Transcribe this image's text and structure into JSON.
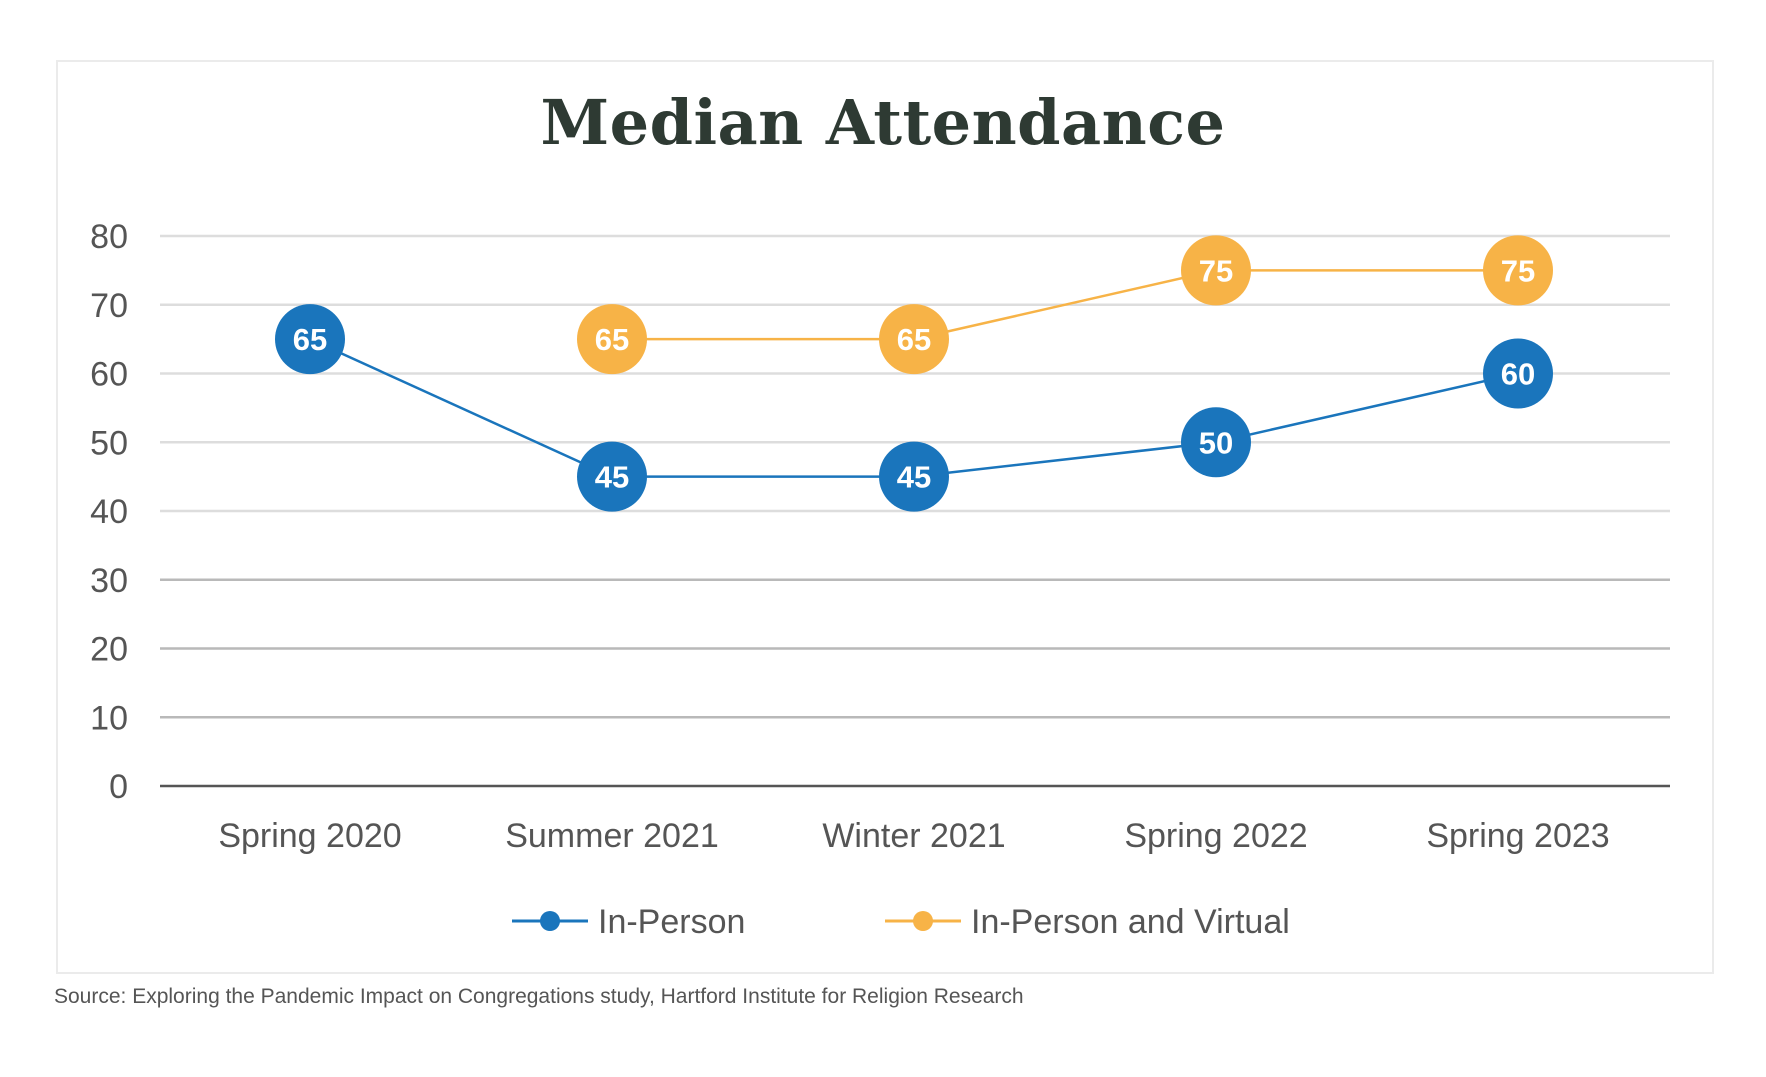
{
  "chart_data": {
    "type": "line",
    "title": "Median Attendance",
    "categories": [
      "Spring 2020",
      "Summer 2021",
      "Winter 2021",
      "Spring 2022",
      "Spring 2023"
    ],
    "series": [
      {
        "name": "In-Person",
        "color": "#1a75bc",
        "values": [
          65,
          45,
          45,
          50,
          60
        ]
      },
      {
        "name": "In-Person and Virtual",
        "color": "#f7b347",
        "values": [
          null,
          65,
          65,
          75,
          75
        ]
      }
    ],
    "ylim": [
      0,
      80
    ],
    "yticks": [
      0,
      10,
      20,
      30,
      40,
      50,
      60,
      70,
      80
    ],
    "grid": true,
    "legend": "bottom",
    "xlabel": "",
    "ylabel": ""
  },
  "source": "Source: Exploring the Pandemic Impact on Congregations study, Hartford Institute for Religion Research"
}
